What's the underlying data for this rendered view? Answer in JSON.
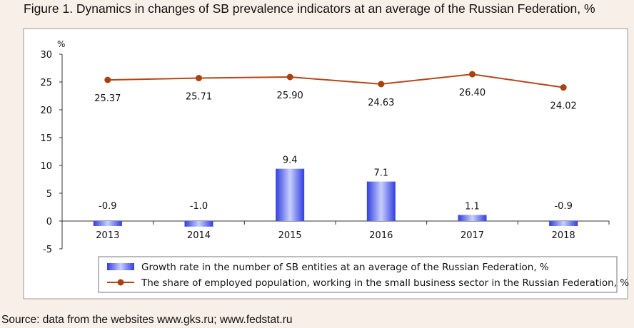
{
  "figure_title": "Figure 1. Dynamics in changes of SB prevalence indicators at an average of the Russian Federation, %",
  "source": "Source:  data from the websites www.gks.ru; www.fedstat.ru",
  "colors": {
    "page_bg": "#f8efe9",
    "plot_bg": "#ffffff",
    "bar": "#2f3ee0",
    "bar_light": "#c9d0ff",
    "line": "#b5471a",
    "marker": "#a8400f"
  },
  "chart_data": {
    "type": "bar+line",
    "title": "Figure 1. Dynamics in changes of SB prevalence indicators at an average of the Russian Federation, %",
    "ylabel": "%",
    "ylim": [
      -5,
      30
    ],
    "yticks": [
      -5,
      0,
      5,
      10,
      15,
      20,
      25,
      30
    ],
    "categories": [
      "2013",
      "2014",
      "2015",
      "2016",
      "2017",
      "2018"
    ],
    "series": [
      {
        "name": "Growth rate in the number of SB entities at an average of the Russian Federation, %",
        "type": "bar",
        "values": [
          -0.9,
          -1.0,
          9.4,
          7.1,
          1.1,
          -0.9
        ],
        "labels": [
          "-0.9",
          "-1.0",
          "9.4",
          "7.1",
          "1.1",
          "-0.9"
        ]
      },
      {
        "name": "The share of employed population, working in the small business sector in the Russian Federation, %",
        "type": "line",
        "values": [
          25.37,
          25.71,
          25.9,
          24.63,
          26.4,
          24.02
        ],
        "labels": [
          "25.37",
          "25.71",
          "25.90",
          "24.63",
          "26.40",
          "24.02"
        ]
      }
    ],
    "legend_position": "bottom"
  }
}
